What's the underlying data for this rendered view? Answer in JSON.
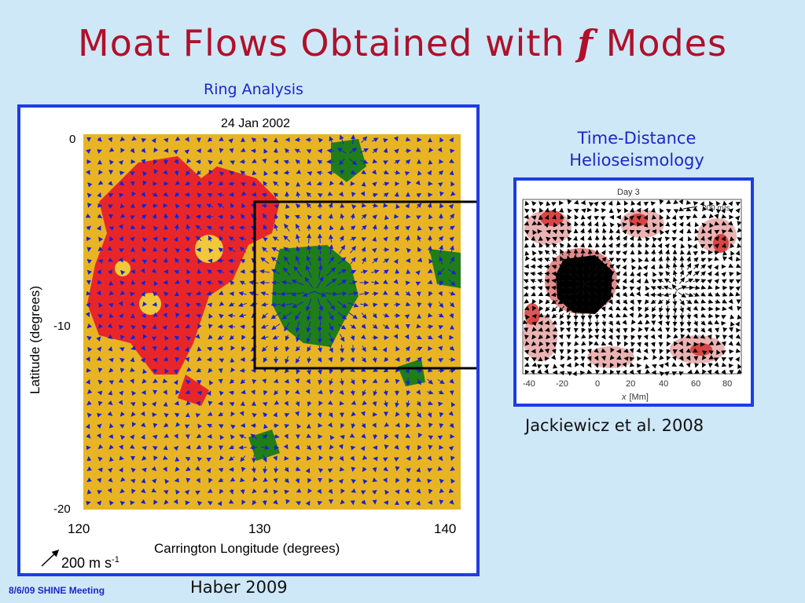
{
  "slide": {
    "title_before": "Moat Flows Obtained with ",
    "title_f": "f",
    "title_after": " Modes",
    "ring_label": "Ring Analysis",
    "td_label_line1": "Time-Distance",
    "td_label_line2": "Helioseismology",
    "citation_right": "Jackiewicz et al. 2008",
    "citation_left": "Haber 2009",
    "footer": "8/6/09 SHINE Meeting"
  },
  "left_plot": {
    "date": "24 Jan   2002",
    "ylabel": "Latitude (degrees)",
    "xlabel": "Carrington Longitude (degrees)",
    "yticks": [
      "0",
      "-10",
      "-20"
    ],
    "xticks": [
      "120",
      "130",
      "140"
    ],
    "scale_label": "200 m s",
    "scale_sup": "-1",
    "colors": {
      "background": "#e8b424",
      "red": "#e8262a",
      "green": "#1f7d1a",
      "arrows": "#1a22d0",
      "box": "#000000"
    }
  },
  "right_plot": {
    "title": "Day 3",
    "scale_label": "200 m/s",
    "xticks": [
      "-40",
      "-20",
      "0",
      "20",
      "40",
      "60",
      "80"
    ],
    "xlabel_var": "x",
    "xlabel_unit": "[Mm]",
    "colors": {
      "spot": "#000000",
      "halo": "#d3201f",
      "arrows": "#111111"
    }
  }
}
